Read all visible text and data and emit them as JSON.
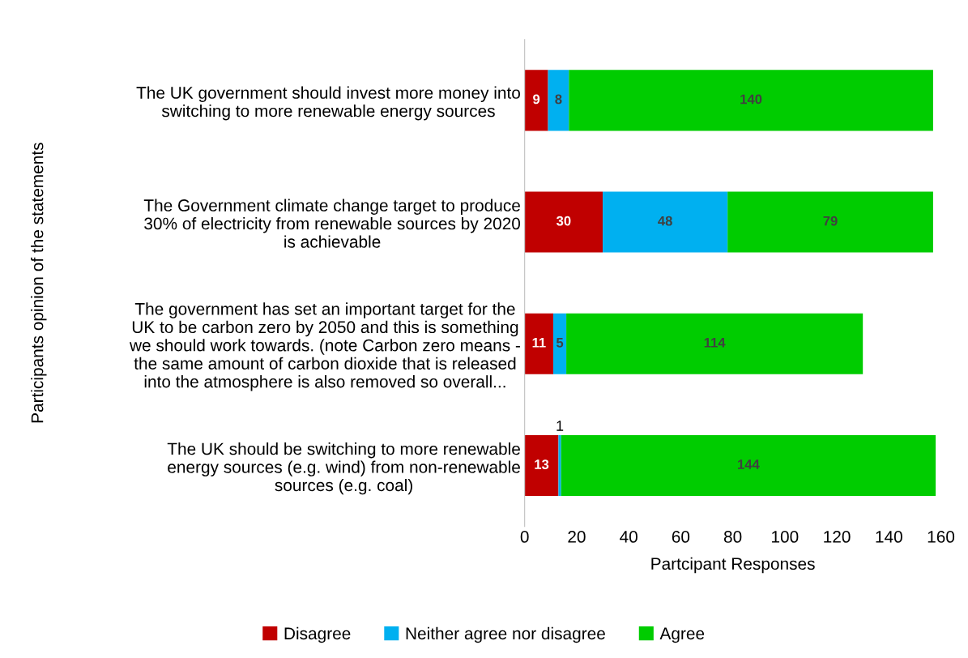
{
  "chart_data": {
    "type": "bar",
    "orientation": "horizontal",
    "stacked": true,
    "categories": [
      "The UK government should invest more money into\nswitching to more renewable energy sources",
      "The Government climate change target to produce\n30% of electricity from renewable sources by 2020\nis achievable",
      "The government has set an important target for the\nUK to be carbon zero by 2050 and this is something\nwe should work towards. (note Carbon zero means -\nthe same amount of carbon dioxide that is released\ninto the atmosphere is also removed so overall...",
      "The UK should be switching to more renewable\nenergy sources (e.g. wind) from non-renewable\nsources (e.g. coal)"
    ],
    "series": [
      {
        "name": "Disagree",
        "color": "#c00000",
        "values": [
          9,
          30,
          11,
          13
        ]
      },
      {
        "name": "Neither agree nor disagree",
        "color": "#00b0f0",
        "values": [
          8,
          48,
          5,
          1
        ]
      },
      {
        "name": "Agree",
        "color": "#00cc00",
        "values": [
          140,
          79,
          114,
          144
        ]
      }
    ],
    "xlim": [
      0,
      160
    ],
    "xticks": [
      0,
      20,
      40,
      60,
      80,
      100,
      120,
      140,
      160
    ],
    "xlabel": "Partcipant Responses",
    "ylabel": "Participants opinion of the statements",
    "data_labels": true,
    "legend": "bottom",
    "grid": false
  }
}
